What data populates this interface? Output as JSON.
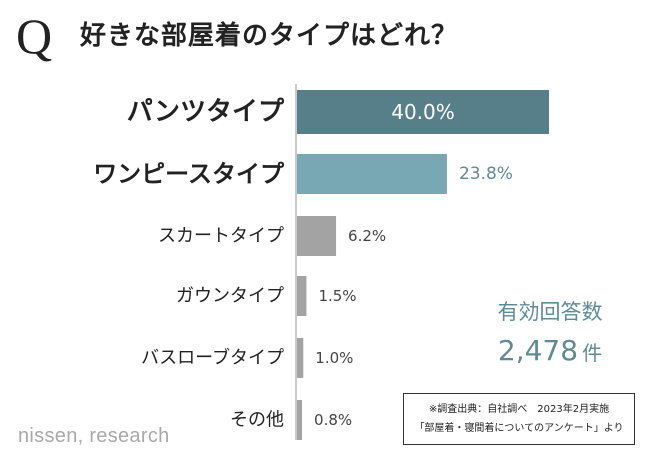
{
  "header": {
    "q_mark": "Q",
    "title": "好きな部屋着のタイプはどれ？"
  },
  "chart_data": {
    "type": "bar",
    "orientation": "horizontal",
    "categories": [
      "パンツタイプ",
      "ワンピースタイプ",
      "スカートタイプ",
      "ガウンタイプ",
      "バスローブタイプ",
      "その他"
    ],
    "values": [
      40.0,
      23.8,
      6.2,
      1.5,
      1.0,
      0.8
    ],
    "value_labels": [
      "40.0%",
      "23.8%",
      "6.2%",
      "1.5%",
      "1.0%",
      "0.8%"
    ],
    "unit": "%",
    "xlim": [
      0,
      40
    ],
    "grid": false,
    "colors": [
      "#567f89",
      "#77a8b4",
      "#a3a3a3",
      "#a3a3a3",
      "#a3a3a3",
      "#a3a3a3"
    ]
  },
  "respondents": {
    "label": "有効回答数",
    "value": "2,478",
    "unit": "件"
  },
  "source_note": {
    "line1": "※調査出典：自社調べ　2023年2月実施",
    "line2": "「部屋着・寝間着についてのアンケート」より"
  },
  "watermark": "nissen, research"
}
